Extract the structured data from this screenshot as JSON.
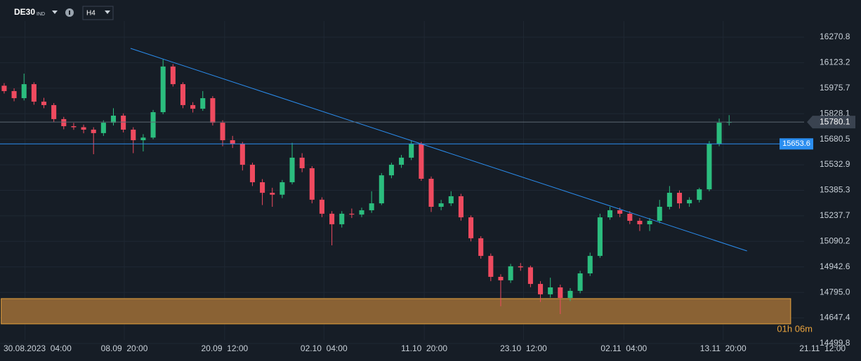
{
  "header": {
    "symbol": "DE30",
    "market": "IND",
    "timeframe": "H4"
  },
  "chart_data": {
    "type": "candlestick",
    "up_color": "#2bbd7e",
    "down_color": "#ef4a5f",
    "grid": true,
    "open": [
      15990,
      15959,
      15918,
      15999,
      15898,
      15878,
      15797,
      15756,
      15750,
      15736,
      15716,
      15776,
      15817,
      15736,
      15675,
      15690,
      15837,
      16101,
      15999,
      15878,
      15857,
      15918,
      15776,
      15675,
      15655,
      15533,
      15432,
      15371,
      15360,
      15432,
      15574,
      15513,
      15331,
      15250,
      15189,
      15250,
      15245,
      15270,
      15310,
      15472,
      15533,
      15574,
      15655,
      15452,
      15290,
      15310,
      15351,
      15229,
      15108,
      15006,
      14885,
      14865,
      14946,
      14940,
      14844,
      14784,
      14824,
      14763,
      14804,
      14905,
      15006,
      15229,
      15270,
      15250,
      15209,
      15189,
      15209,
      15290,
      15371,
      15310,
      15330,
      15391,
      15655,
      15776
    ],
    "high": [
      16005,
      15975,
      16060,
      16010,
      15920,
      15890,
      15810,
      15775,
      15765,
      15750,
      15790,
      15860,
      15830,
      15750,
      15710,
      15850,
      16142,
      16115,
      16010,
      15895,
      15959,
      15930,
      15790,
      15700,
      15665,
      15545,
      15450,
      15400,
      15445,
      15660,
      15600,
      15525,
      15345,
      15265,
      15265,
      15280,
      15285,
      15380,
      15485,
      15545,
      15590,
      15675,
      15665,
      15465,
      15330,
      15380,
      15365,
      15240,
      15120,
      15020,
      14900,
      14960,
      14965,
      14950,
      14860,
      14880,
      14840,
      14820,
      14920,
      15025,
      15250,
      15290,
      15285,
      15265,
      15225,
      15225,
      15330,
      15410,
      15385,
      15345,
      15400,
      15670,
      15800,
      15820
    ],
    "low": [
      15945,
      15900,
      15905,
      15880,
      15860,
      15780,
      15738,
      15735,
      15715,
      15594,
      15700,
      15760,
      15720,
      15600,
      15610,
      15680,
      15825,
      15985,
      15860,
      15835,
      15845,
      15760,
      15640,
      15630,
      15500,
      15410,
      15300,
      15290,
      15340,
      15420,
      15490,
      15310,
      15230,
      15067,
      15170,
      15225,
      15230,
      15255,
      15300,
      15455,
      15515,
      15560,
      15440,
      15260,
      15270,
      15295,
      15210,
      15090,
      14990,
      14860,
      14715,
      14850,
      14920,
      14825,
      14740,
      14765,
      14670,
      14745,
      14790,
      14890,
      14995,
      15215,
      15230,
      15190,
      15150,
      15150,
      15195,
      15275,
      15280,
      15290,
      15315,
      15380,
      15640,
      15760
    ],
    "close": [
      15959,
      15918,
      15999,
      15898,
      15878,
      15797,
      15756,
      15750,
      15736,
      15716,
      15776,
      15817,
      15736,
      15675,
      15690,
      15837,
      16101,
      15999,
      15878,
      15857,
      15918,
      15776,
      15675,
      15655,
      15533,
      15432,
      15371,
      15360,
      15432,
      15574,
      15513,
      15331,
      15250,
      15189,
      15250,
      15245,
      15270,
      15310,
      15472,
      15533,
      15574,
      15655,
      15452,
      15290,
      15310,
      15351,
      15229,
      15108,
      15006,
      14885,
      14865,
      14946,
      14940,
      14844,
      14784,
      14824,
      14763,
      14804,
      14905,
      15006,
      15229,
      15270,
      15250,
      15209,
      15189,
      15209,
      15290,
      15371,
      15310,
      15330,
      15391,
      15655,
      15776,
      15780.1
    ],
    "xlim": [
      -0.42,
      86.28
    ],
    "xticks": [
      {
        "value": 2.1,
        "label": "30.08.2023  04:00"
      },
      {
        "value": 12.1,
        "label": "08.09  20:00"
      },
      {
        "value": 22.2,
        "label": "20.09  12:00"
      },
      {
        "value": 32.2,
        "label": "02.10  04:00"
      },
      {
        "value": 42.3,
        "label": "11.10  20:00"
      },
      {
        "value": 52.3,
        "label": "23.10  12:00"
      },
      {
        "value": 62.4,
        "label": "02.11  04:00"
      },
      {
        "value": 72.4,
        "label": "13.11  20:00"
      },
      {
        "value": 82.4,
        "label": "21.11  12:00"
      }
    ],
    "ylim": [
      14479.5,
      16485.6
    ],
    "yticks": [
      16270.8,
      16123.2,
      15975.7,
      15828.1,
      15680.5,
      15532.9,
      15385.3,
      15237.7,
      15090.2,
      14942.6,
      {
        "value": 14795,
        "label": "14795.0"
      },
      14647.4,
      14499.8
    ],
    "price_lines": [
      {
        "value": 15780.1,
        "color": "#5d6873"
      },
      {
        "value": 15653.6,
        "color": "#2b8ef0"
      }
    ],
    "trend_lines": [
      {
        "x": [
          12.73,
          74.8
        ],
        "y": [
          16206,
          15034.8
        ],
        "color": "#2b8ef0"
      }
    ],
    "zone": {
      "xlim": [
        -0.3,
        79.2
      ],
      "ylim": [
        14613.3,
        14759.2
      ],
      "color": "#8a6234",
      "border": "#e8a33d"
    },
    "countdown": "01h 06m"
  }
}
